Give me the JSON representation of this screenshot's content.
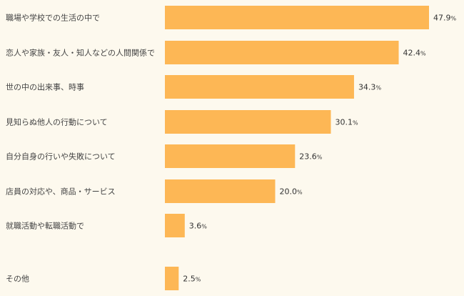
{
  "chart_data": {
    "type": "bar",
    "orientation": "horizontal",
    "title": "",
    "xlabel": "",
    "ylabel": "",
    "unit": "%",
    "xlim": [
      0,
      50
    ],
    "grid": false,
    "legend": "none",
    "bar_color": "#fdb755",
    "categories": [
      "職場や学校での生活の中で",
      "恋人や家族・友人・知人などの人間関係で",
      "世の中の出来事、時事",
      "見知らぬ他人の行動について",
      "自分自身の行いや失敗について",
      "店員の対応や、商品・サービス",
      "就職活動や転職活動で",
      "その他"
    ],
    "values": [
      47.9,
      42.4,
      34.3,
      30.1,
      23.6,
      20.0,
      3.6,
      2.5
    ],
    "value_labels": [
      "47.9",
      "42.4",
      "34.3",
      "30.1",
      "23.6",
      "20.0",
      "3.6",
      "2.5"
    ]
  }
}
